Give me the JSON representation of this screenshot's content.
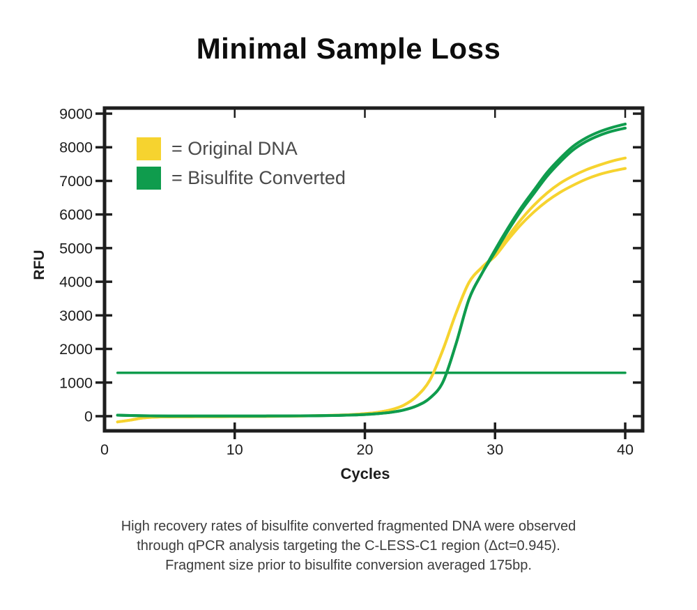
{
  "title": "Minimal Sample Loss",
  "legend": [
    {
      "label": "= Original DNA",
      "color": "#F6D32F"
    },
    {
      "label": "= Bisulfite Converted",
      "color": "#0F9C4D"
    }
  ],
  "caption": {
    "line1": "High recovery rates of bisulfite converted fragmented DNA were observed",
    "line2": "through qPCR analysis targeting the C-LESS-C1 region (Δct=0.945).",
    "line3": "Fragment size prior to bisulfite conversion averaged 175bp."
  },
  "chart_data": {
    "type": "line",
    "xlabel": "Cycles",
    "ylabel": "RFU",
    "xlim": [
      0,
      41.3
    ],
    "ylim": [
      -350,
      9170
    ],
    "xticks": [
      0,
      10,
      20,
      30,
      40
    ],
    "yticks": [
      0,
      1000,
      2000,
      3000,
      4000,
      5000,
      6000,
      7000,
      8000,
      9000
    ],
    "grid": false,
    "legend_position": "top-left",
    "axis_color": "#1E1E1E",
    "tick_label_color": "#1D1D1D",
    "threshold_line": {
      "label": "threshold",
      "rfu": 1290,
      "x_start": 1,
      "x_end": 40,
      "color": "#0F9C4D"
    },
    "x": [
      1,
      2,
      3,
      4,
      5,
      6,
      7,
      8,
      9,
      10,
      11,
      12,
      13,
      14,
      15,
      16,
      17,
      18,
      19,
      20,
      21,
      22,
      23,
      24,
      25,
      26,
      27,
      28,
      29,
      30,
      31,
      32,
      33,
      34,
      35,
      36,
      37,
      38,
      39,
      40
    ],
    "series": [
      {
        "name": "Original DNA rep 1",
        "color": "#F6D32F",
        "values": [
          -170,
          -115,
          -50,
          -25,
          -18,
          -15,
          -14,
          -13,
          -12,
          -10,
          -8,
          -5,
          -2,
          2,
          6,
          12,
          20,
          32,
          48,
          75,
          115,
          190,
          330,
          600,
          1080,
          1980,
          3060,
          3980,
          4430,
          4800,
          5350,
          5850,
          6280,
          6640,
          6930,
          7150,
          7330,
          7470,
          7590,
          7680
        ]
      },
      {
        "name": "Original DNA rep 2",
        "color": "#F6D32F",
        "values": [
          -170,
          -115,
          -50,
          -25,
          -18,
          -15,
          -14,
          -13,
          -12,
          -10,
          -8,
          -5,
          -2,
          2,
          6,
          12,
          20,
          32,
          48,
          75,
          115,
          190,
          330,
          600,
          1080,
          1980,
          3060,
          3980,
          4430,
          4760,
          5250,
          5700,
          6080,
          6400,
          6660,
          6870,
          7050,
          7190,
          7290,
          7370
        ]
      },
      {
        "name": "Bisulfite Converted rep 1",
        "color": "#0F9C4D",
        "values": [
          30,
          20,
          12,
          8,
          6,
          5,
          5,
          5,
          5,
          5,
          5,
          6,
          7,
          8,
          10,
          13,
          17,
          24,
          35,
          50,
          75,
          115,
          185,
          310,
          540,
          1020,
          2150,
          3480,
          4250,
          4950,
          5600,
          6200,
          6730,
          7250,
          7670,
          8030,
          8280,
          8460,
          8590,
          8690
        ]
      },
      {
        "name": "Bisulfite Converted rep 2",
        "color": "#0F9C4D",
        "values": [
          30,
          20,
          12,
          8,
          6,
          5,
          5,
          5,
          5,
          5,
          5,
          6,
          7,
          8,
          10,
          13,
          17,
          24,
          35,
          50,
          75,
          115,
          185,
          310,
          540,
          1020,
          2150,
          3480,
          4250,
          4880,
          5520,
          6110,
          6630,
          7140,
          7560,
          7920,
          8170,
          8350,
          8480,
          8570
        ]
      }
    ]
  }
}
